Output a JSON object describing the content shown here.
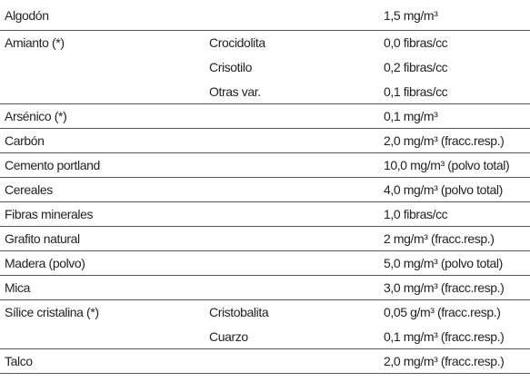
{
  "table": {
    "rows": [
      {
        "substance": "Algodón",
        "items": [
          {
            "variety": null,
            "limit": "1,5 mg/m³"
          }
        ]
      },
      {
        "substance": "Amianto (*)",
        "items": [
          {
            "variety": "Crocidolita",
            "limit": "0,0 fibras/cc"
          },
          {
            "variety": "Crisotilo",
            "limit": "0,2 fibras/cc"
          },
          {
            "variety": "Otras var.",
            "limit": "0,1 fibras/cc"
          }
        ]
      },
      {
        "substance": "Arsénico (*)",
        "items": [
          {
            "variety": null,
            "limit": "0,1 mg/m³"
          }
        ]
      },
      {
        "substance": "Carbón",
        "items": [
          {
            "variety": null,
            "limit": "2,0 mg/m³ (fracc.resp.)"
          }
        ]
      },
      {
        "substance": "Cemento portland",
        "items": [
          {
            "variety": null,
            "limit": "10,0 mg/m³ (polvo total)"
          }
        ]
      },
      {
        "substance": "Cereales",
        "items": [
          {
            "variety": null,
            "limit": "4,0 mg/m³ (polvo total)"
          }
        ]
      },
      {
        "substance": "Fibras minerales",
        "items": [
          {
            "variety": null,
            "limit": "1,0 fibras/cc"
          }
        ]
      },
      {
        "substance": "Grafito natural",
        "items": [
          {
            "variety": null,
            "limit": "2 mg/m³ (fracc.resp.)"
          }
        ]
      },
      {
        "substance": "Madera (polvo)",
        "items": [
          {
            "variety": null,
            "limit": "5,0 mg/m³ (polvo total)"
          }
        ]
      },
      {
        "substance": "Mica",
        "items": [
          {
            "variety": null,
            "limit": "3,0 mg/m³ (fracc.resp.)"
          }
        ]
      },
      {
        "substance": "Sílice cristalina (*)",
        "items": [
          {
            "variety": "Cristobalita",
            "limit": "0,05 g/m³ (fracc.resp.)"
          },
          {
            "variety": "Cuarzo",
            "limit": "0,1 mg/m³ (fracc.resp.)"
          }
        ]
      },
      {
        "substance": "Talco",
        "items": [
          {
            "variety": null,
            "limit": "2,0 mg/m³ (fracc.resp.)"
          }
        ]
      }
    ]
  }
}
